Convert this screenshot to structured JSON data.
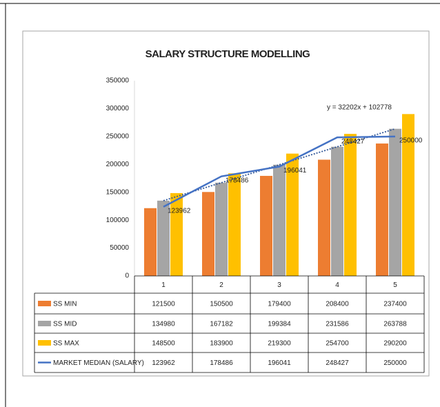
{
  "chart_data": {
    "type": "bar",
    "title": "SALARY STRUCTURE MODELLING",
    "categories": [
      "1",
      "2",
      "3",
      "4",
      "5"
    ],
    "series": [
      {
        "name": "SS MIN",
        "color": "#ed7d31",
        "values": [
          121500,
          150500,
          179400,
          208400,
          237400
        ]
      },
      {
        "name": "SS MID",
        "color": "#a5a5a5",
        "values": [
          134980,
          167182,
          199384,
          231586,
          263788
        ]
      },
      {
        "name": "SS MAX",
        "color": "#ffc000",
        "values": [
          148500,
          183900,
          219300,
          254700,
          290200
        ]
      },
      {
        "name": "MARKET MEDIAN (SALARY)",
        "type": "line",
        "color": "#4472c4",
        "values": [
          123962,
          178486,
          196041,
          248427,
          250000
        ]
      }
    ],
    "trendline": {
      "label": "y = 32202x + 102778",
      "slope": 32202,
      "intercept": 102778,
      "color": "#2f5597"
    },
    "ylim": [
      0,
      350000
    ],
    "yticks": [
      0,
      50000,
      100000,
      150000,
      200000,
      250000,
      300000,
      350000
    ],
    "grid": false,
    "data_table": true
  }
}
